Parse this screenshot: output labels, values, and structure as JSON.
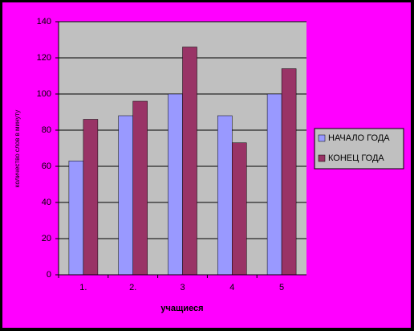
{
  "chart_data": {
    "type": "bar",
    "y_label": "количество слов в минуту",
    "x_label": "учащиеся",
    "categories": [
      "1.",
      "2.",
      "3",
      "4",
      "5"
    ],
    "series": [
      {
        "name": "НАЧАЛО ГОДА",
        "color": "#9999ff",
        "values": [
          63,
          88,
          100,
          88,
          100
        ]
      },
      {
        "name": "КОНЕЦ ГОДА",
        "color": "#993366",
        "values": [
          86,
          96,
          126,
          73,
          114
        ]
      }
    ],
    "ylim": [
      0,
      140
    ],
    "yticks": [
      0,
      20,
      40,
      60,
      80,
      100,
      120,
      140
    ],
    "grid": true,
    "legend": "right"
  }
}
